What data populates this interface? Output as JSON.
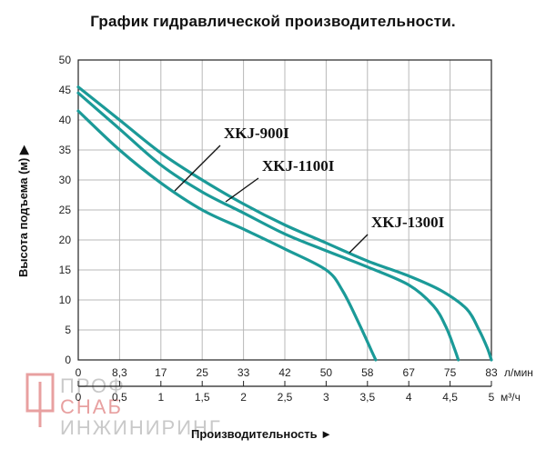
{
  "title": "График гидравлической производительности.",
  "chart_data": {
    "type": "line",
    "ylabel": "Высота подъема (м) ▶",
    "xlabel": "Производительность ►",
    "ylim": [
      0,
      50
    ],
    "y_ticks": [
      "0",
      "5",
      "10",
      "15",
      "20",
      "25",
      "30",
      "35",
      "40",
      "45",
      "50"
    ],
    "x_ticks_lmin": [
      "0",
      "8,3",
      "17",
      "25",
      "33",
      "42",
      "50",
      "58",
      "67",
      "75",
      "83"
    ],
    "x_unit_lmin": "л/мин",
    "x_ticks_m3h": [
      "0",
      "0,5",
      "1",
      "1,5",
      "2",
      "2,5",
      "3",
      "3,5",
      "4",
      "4,5",
      "5"
    ],
    "x_unit_m3h": "м³/ч",
    "xlim_m3h": [
      0,
      5
    ],
    "grid": true,
    "series": [
      {
        "name": "XKJ-900I",
        "x": [
          0,
          0.5,
          1.0,
          1.5,
          2.0,
          2.5,
          3.0,
          3.2,
          3.4,
          3.55,
          3.6
        ],
        "y": [
          41.5,
          35.0,
          29.5,
          25.0,
          21.8,
          18.5,
          15.0,
          11.5,
          6.0,
          1.5,
          0
        ]
      },
      {
        "name": "XKJ-1100I",
        "x": [
          0,
          0.5,
          1.0,
          1.5,
          2.0,
          2.5,
          3.0,
          3.5,
          4.0,
          4.3,
          4.45,
          4.55,
          4.6
        ],
        "y": [
          44.5,
          38.5,
          32.5,
          28.0,
          24.5,
          21.0,
          18.2,
          15.5,
          12.5,
          9.0,
          5.5,
          2.0,
          0
        ]
      },
      {
        "name": "XKJ-1300I",
        "x": [
          0,
          0.5,
          1.0,
          1.5,
          2.0,
          2.5,
          3.0,
          3.5,
          4.0,
          4.4,
          4.7,
          4.85,
          4.95,
          5.0
        ],
        "y": [
          45.5,
          40.0,
          34.5,
          30.0,
          26.0,
          22.5,
          19.5,
          16.5,
          14.0,
          11.5,
          8.5,
          5.0,
          2.0,
          0
        ]
      }
    ]
  },
  "colors": {
    "curve": "#1b9a98",
    "grid": "#b8b8b8",
    "axis": "#222222",
    "watermark": "#d0d0d0",
    "watermark_accent": "#e8a0a0"
  },
  "watermark": {
    "line1": "ПРОФ",
    "line2": "СНАБ",
    "line3": "ИНЖИНИРИНГ"
  }
}
